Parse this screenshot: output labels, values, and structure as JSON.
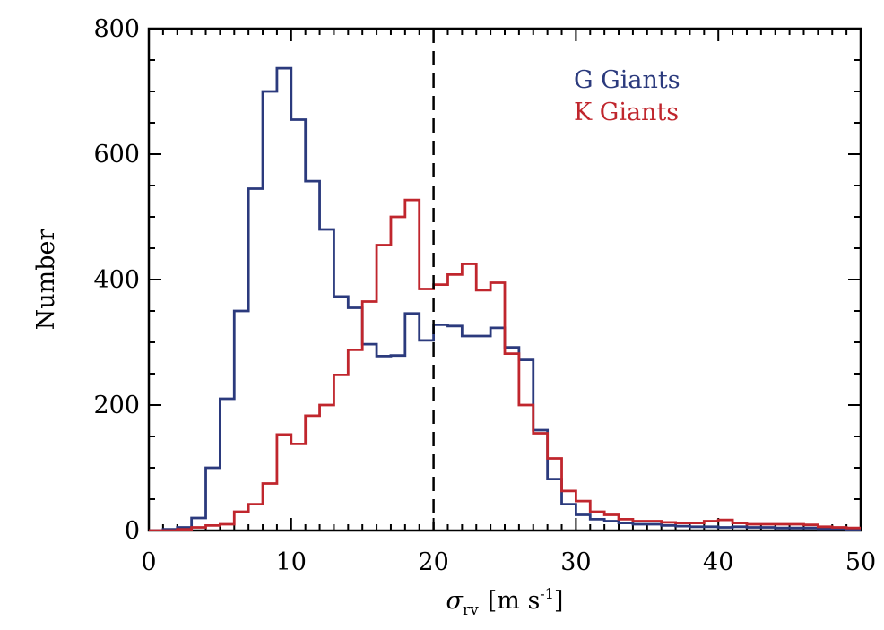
{
  "chart_data": {
    "type": "histogram",
    "title": "",
    "xlabel": {
      "symbol": "σ",
      "subscript": "rv",
      "units_open": "[m s",
      "units_sup": "-1",
      "units_close": "]"
    },
    "ylabel": "Number",
    "xlim": [
      0,
      50
    ],
    "ylim": [
      0,
      800
    ],
    "xticks": [
      0,
      10,
      20,
      30,
      40,
      50
    ],
    "yticks": [
      0,
      200,
      400,
      600,
      800
    ],
    "xtick_labels": [
      "0",
      "10",
      "20",
      "30",
      "40",
      "50"
    ],
    "ytick_labels": [
      "0",
      "200",
      "400",
      "600",
      "800"
    ],
    "bin_width": 1,
    "bin_edges_start": 0,
    "reference_line": {
      "x": 20,
      "style": "dashed",
      "color": "#000000"
    },
    "legend": {
      "position": "top-right"
    },
    "series": [
      {
        "name": "G Giants",
        "color": "#2b3a7d",
        "values": [
          0,
          2,
          5,
          20,
          100,
          210,
          350,
          545,
          700,
          737,
          655,
          557,
          480,
          373,
          355,
          297,
          278,
          279,
          346,
          303,
          328,
          326,
          310,
          310,
          323,
          292,
          272,
          160,
          82,
          42,
          25,
          18,
          15,
          12,
          10,
          10,
          8,
          7,
          6,
          6,
          5,
          6,
          5,
          5,
          4,
          4,
          4,
          3,
          3,
          2
        ]
      },
      {
        "name": "K Giants",
        "color": "#c0262d",
        "values": [
          0,
          0,
          2,
          5,
          8,
          10,
          30,
          42,
          75,
          153,
          138,
          183,
          200,
          248,
          288,
          365,
          455,
          500,
          527,
          385,
          392,
          408,
          425,
          383,
          395,
          282,
          200,
          155,
          115,
          63,
          47,
          30,
          25,
          18,
          15,
          15,
          13,
          12,
          12,
          15,
          17,
          12,
          10,
          10,
          10,
          10,
          9,
          6,
          5,
          4
        ]
      }
    ]
  }
}
